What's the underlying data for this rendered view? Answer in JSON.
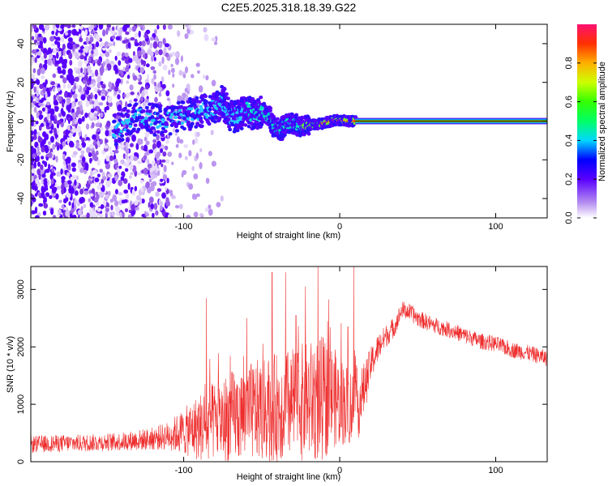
{
  "chart_data": [
    {
      "type": "heatmap",
      "title": "C2E5.2025.318.18.39.G22",
      "xlabel": "Height of straight line (km)",
      "ylabel": "Frequency (Hz)",
      "xlim": [
        -198,
        133
      ],
      "ylim": [
        -50,
        50
      ],
      "xticks": [
        -100,
        0,
        100
      ],
      "yticks": [
        -40,
        -20,
        0,
        20,
        40
      ],
      "noise_floor_edge_km": -110,
      "signal_track": [
        {
          "x": -145,
          "y": -5
        },
        {
          "x": -130,
          "y": 3
        },
        {
          "x": -115,
          "y": 0
        },
        {
          "x": -100,
          "y": 3
        },
        {
          "x": -90,
          "y": 5
        },
        {
          "x": -80,
          "y": 7
        },
        {
          "x": -75,
          "y": 10
        },
        {
          "x": -70,
          "y": 2
        },
        {
          "x": -65,
          "y": 3
        },
        {
          "x": -60,
          "y": 6
        },
        {
          "x": -55,
          "y": 3
        },
        {
          "x": -50,
          "y": 5
        },
        {
          "x": -45,
          "y": 2
        },
        {
          "x": -42,
          "y": -3
        },
        {
          "x": -38,
          "y": -5
        },
        {
          "x": -35,
          "y": -2
        },
        {
          "x": -30,
          "y": -1
        },
        {
          "x": -25,
          "y": -3
        },
        {
          "x": -20,
          "y": -2
        },
        {
          "x": -15,
          "y": -2
        },
        {
          "x": -10,
          "y": -1
        },
        {
          "x": -5,
          "y": 0
        },
        {
          "x": 0,
          "y": 0.5
        },
        {
          "x": 5,
          "y": 0
        },
        {
          "x": 10,
          "y": 0
        }
      ],
      "steady_carrier": {
        "x_start": 10,
        "x_end": 133,
        "freq_hz": 0
      },
      "colorbar": {
        "label": "Normalized spectral amplitude",
        "range": [
          0,
          1
        ],
        "ticks": [
          0.0,
          0.2,
          0.4,
          0.6,
          0.8
        ],
        "tick_labels": [
          "0.0",
          "0.2",
          "0.4",
          "0.6",
          "0.8"
        ]
      }
    },
    {
      "type": "line",
      "title": "",
      "xlabel": "Height of straight line (km)",
      "ylabel": "SNR (10 * v/v)",
      "xlim": [
        -198,
        133
      ],
      "ylim": [
        0,
        3400
      ],
      "xticks": [
        -100,
        0,
        100
      ],
      "yticks": [
        0,
        1000,
        2000,
        3000
      ],
      "color": "#ee2d2d",
      "series": [
        {
          "name": "SNR",
          "x": [
            -198,
            -180,
            -160,
            -140,
            -120,
            -110,
            -100,
            -90,
            -80,
            -70,
            -60,
            -50,
            -40,
            -30,
            -20,
            -10,
            -5,
            0,
            5,
            10,
            15,
            20,
            25,
            30,
            35,
            40,
            45,
            50,
            60,
            70,
            80,
            90,
            100,
            110,
            120,
            133
          ],
          "mean": [
            300,
            320,
            330,
            350,
            400,
            450,
            520,
            600,
            700,
            780,
            850,
            900,
            950,
            1000,
            1050,
            1100,
            1150,
            1050,
            1000,
            900,
            1200,
            1700,
            2000,
            2200,
            2350,
            2650,
            2600,
            2500,
            2380,
            2300,
            2200,
            2100,
            2050,
            1950,
            1900,
            1800
          ],
          "spread": [
            150,
            150,
            150,
            160,
            200,
            250,
            400,
            600,
            700,
            800,
            850,
            900,
            950,
            1000,
            1050,
            1100,
            900,
            800,
            700,
            700,
            500,
            300,
            250,
            200,
            180,
            150,
            150,
            150,
            140,
            140,
            140,
            140,
            140,
            140,
            140,
            140
          ],
          "spikes": [
            {
              "x": -85,
              "y": 2850
            },
            {
              "x": -82,
              "y": 2300
            },
            {
              "x": -75,
              "y": 2600
            },
            {
              "x": -60,
              "y": 2500
            },
            {
              "x": -48,
              "y": 3050
            },
            {
              "x": -43,
              "y": 3300
            },
            {
              "x": -35,
              "y": 3300
            },
            {
              "x": -28,
              "y": 2550
            },
            {
              "x": -22,
              "y": 3050
            },
            {
              "x": -14,
              "y": 3400
            },
            {
              "x": -8,
              "y": 2450
            },
            {
              "x": 0,
              "y": 2800
            },
            {
              "x": 5,
              "y": 2350
            },
            {
              "x": 9,
              "y": 3400
            }
          ]
        }
      ]
    }
  ]
}
